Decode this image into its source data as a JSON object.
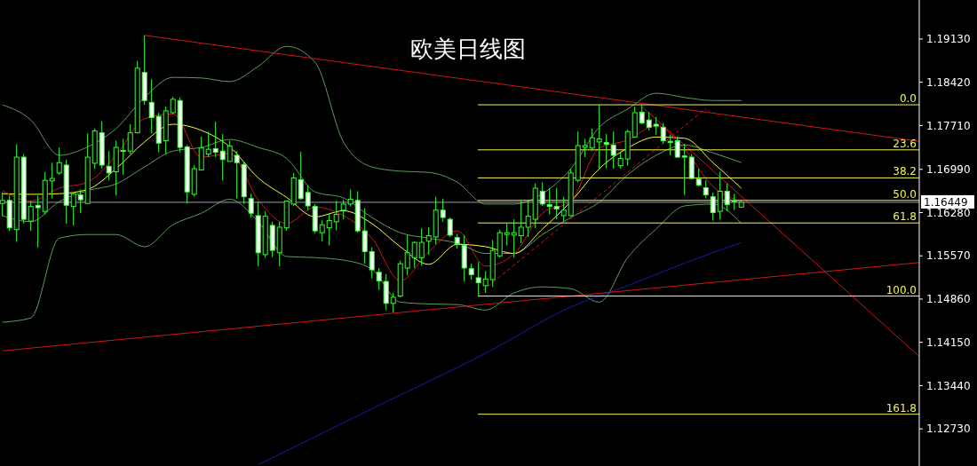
{
  "chart_data": {
    "type": "candlestick",
    "title": "欧美日线图",
    "categories": [
      null,
      null,
      null,
      null,
      null,
      null,
      null,
      null,
      null,
      null,
      null,
      null,
      null,
      null,
      null,
      null,
      null,
      null,
      null,
      null,
      null,
      null,
      null,
      null,
      null,
      null,
      null,
      null,
      null,
      null,
      null,
      null,
      null,
      null,
      null,
      null,
      null,
      null,
      null,
      null,
      null,
      null,
      null,
      null,
      null,
      null,
      null,
      null,
      null,
      null,
      null,
      null,
      null,
      null,
      null,
      null,
      null,
      null,
      null,
      null,
      null,
      null,
      null,
      null,
      null,
      null,
      null,
      null,
      null,
      null,
      null,
      null,
      null,
      null,
      null,
      null,
      null,
      null,
      null,
      null,
      null,
      null,
      null,
      null,
      null,
      null,
      null,
      null,
      null,
      null,
      null,
      null,
      null,
      null,
      null,
      null,
      null,
      null,
      null,
      null,
      null,
      null,
      null,
      null,
      null,
      null,
      null,
      null,
      null,
      null,
      null,
      null,
      null,
      null,
      null,
      null,
      null,
      null,
      null,
      null,
      null,
      null,
      null,
      null,
      null,
      null,
      null,
      null,
      null,
      null
    ],
    "ohlc": [
      [
        1.1643,
        1.1661,
        1.1622,
        1.1648
      ],
      [
        1.1648,
        1.1656,
        1.1598,
        1.1603
      ],
      [
        1.16,
        1.174,
        1.158,
        1.1719
      ],
      [
        1.1719,
        1.1724,
        1.161,
        1.1617
      ],
      [
        1.1614,
        1.1647,
        1.1598,
        1.1638
      ],
      [
        1.164,
        1.1656,
        1.1571,
        1.1636
      ],
      [
        1.163,
        1.1695,
        1.1625,
        1.1681
      ],
      [
        1.168,
        1.171,
        1.1651,
        1.1684
      ],
      [
        1.1693,
        1.1735,
        1.169,
        1.171
      ],
      [
        1.1706,
        1.1715,
        1.161,
        1.164
      ],
      [
        1.1638,
        1.1661,
        1.1607,
        1.1659
      ],
      [
        1.1657,
        1.1666,
        1.1627,
        1.1649
      ],
      [
        1.1643,
        1.1758,
        1.1643,
        1.1719
      ],
      [
        1.1709,
        1.1766,
        1.17,
        1.1762
      ],
      [
        1.1759,
        1.1778,
        1.17,
        1.1706
      ],
      [
        1.1704,
        1.1729,
        1.1681,
        1.1693
      ],
      [
        1.1695,
        1.1746,
        1.1656,
        1.1735
      ],
      [
        1.1729,
        1.1749,
        1.169,
        1.173
      ],
      [
        1.1729,
        1.1773,
        1.1724,
        1.1759
      ],
      [
        1.1759,
        1.1877,
        1.1758,
        1.1865
      ],
      [
        1.1858,
        1.1919,
        1.1805,
        1.1812
      ],
      [
        1.1809,
        1.1847,
        1.1758,
        1.1784
      ],
      [
        1.1786,
        1.1792,
        1.1727,
        1.1742
      ],
      [
        1.1746,
        1.1802,
        1.1724,
        1.1795
      ],
      [
        1.1792,
        1.1818,
        1.179,
        1.1814
      ],
      [
        1.1812,
        1.1817,
        1.1727,
        1.1735
      ],
      [
        1.1736,
        1.1739,
        1.1643,
        1.1662
      ],
      [
        1.1658,
        1.1706,
        1.1654,
        1.17
      ],
      [
        1.1698,
        1.1753,
        1.1697,
        1.1734
      ],
      [
        1.1724,
        1.1761,
        1.1719,
        1.1732
      ],
      [
        1.1733,
        1.1777,
        1.1719,
        1.1727
      ],
      [
        1.1729,
        1.1757,
        1.1681,
        1.1715
      ],
      [
        1.1712,
        1.1746,
        1.1712,
        1.1737
      ],
      [
        1.1722,
        1.1729,
        1.1651,
        1.171
      ],
      [
        1.1707,
        1.1712,
        1.1642,
        1.1654
      ],
      [
        1.1651,
        1.1659,
        1.162,
        1.1627
      ],
      [
        1.1623,
        1.1646,
        1.154,
        1.1562
      ],
      [
        1.1559,
        1.163,
        1.1554,
        1.1622
      ],
      [
        1.1607,
        1.1613,
        1.1555,
        1.1566
      ],
      [
        1.1562,
        1.1613,
        1.154,
        1.1604
      ],
      [
        1.1603,
        1.1647,
        1.1598,
        1.1647
      ],
      [
        1.1642,
        1.1693,
        1.1639,
        1.1685
      ],
      [
        1.1682,
        1.1728,
        1.1649,
        1.1651
      ],
      [
        1.1661,
        1.1673,
        1.1632,
        1.1639
      ],
      [
        1.1638,
        1.1642,
        1.1594,
        1.1598
      ],
      [
        1.1595,
        1.1615,
        1.1581,
        1.1608
      ],
      [
        1.1603,
        1.1627,
        1.1574,
        1.1615
      ],
      [
        1.1613,
        1.1647,
        1.1599,
        1.1625
      ],
      [
        1.1632,
        1.1649,
        1.1617,
        1.1642
      ],
      [
        1.1642,
        1.1666,
        1.1638,
        1.165
      ],
      [
        1.1648,
        1.1663,
        1.1595,
        1.1598
      ],
      [
        1.1598,
        1.1635,
        1.1544,
        1.1564
      ],
      [
        1.1564,
        1.1571,
        1.152,
        1.1534
      ],
      [
        1.153,
        1.1537,
        1.1501,
        1.1516
      ],
      [
        1.1515,
        1.1527,
        1.1468,
        1.1479
      ],
      [
        1.1479,
        1.1496,
        1.1464,
        1.1489
      ],
      [
        1.1491,
        1.1549,
        1.1489,
        1.1544
      ],
      [
        1.1537,
        1.1591,
        1.1525,
        1.1562
      ],
      [
        1.1554,
        1.1581,
        1.1537,
        1.1579
      ],
      [
        1.1554,
        1.1602,
        1.1541,
        1.1579
      ],
      [
        1.1581,
        1.1604,
        1.1559,
        1.159
      ],
      [
        1.1588,
        1.1654,
        1.1576,
        1.1632
      ],
      [
        1.1632,
        1.1651,
        1.1613,
        1.162
      ],
      [
        1.1617,
        1.162,
        1.1588,
        1.1591
      ],
      [
        1.1587,
        1.1593,
        1.1569,
        1.1577
      ],
      [
        1.1574,
        1.1591,
        1.1515,
        1.1537
      ],
      [
        1.1536,
        1.1544,
        1.1518,
        1.1526
      ],
      [
        1.1521,
        1.1547,
        1.1491,
        1.1513
      ],
      [
        1.1508,
        1.1532,
        1.1496,
        1.1519
      ],
      [
        1.1518,
        1.1583,
        1.1506,
        1.1566
      ],
      [
        1.1557,
        1.16,
        1.1554,
        1.1595
      ],
      [
        1.1592,
        1.161,
        1.1574,
        1.1595
      ],
      [
        1.1591,
        1.1617,
        1.1554,
        1.1595
      ],
      [
        1.159,
        1.1647,
        1.1578,
        1.1604
      ],
      [
        1.1604,
        1.1647,
        1.1588,
        1.1622
      ],
      [
        1.1617,
        1.1676,
        1.1603,
        1.1668
      ],
      [
        1.1663,
        1.1678,
        1.1639,
        1.1642
      ],
      [
        1.1641,
        1.1668,
        1.1625,
        1.1638
      ],
      [
        1.1638,
        1.1668,
        1.1617,
        1.1634
      ],
      [
        1.1623,
        1.1654,
        1.1613,
        1.1632
      ],
      [
        1.1623,
        1.17,
        1.1622,
        1.1693
      ],
      [
        1.1681,
        1.1761,
        1.1678,
        1.1738
      ],
      [
        1.1735,
        1.1749,
        1.1719,
        1.1738
      ],
      [
        1.1734,
        1.1766,
        1.1729,
        1.1751
      ],
      [
        1.1744,
        1.1805,
        1.17,
        1.1749
      ],
      [
        1.1743,
        1.1757,
        1.1701,
        1.174
      ],
      [
        1.1739,
        1.1761,
        1.17,
        1.1722
      ],
      [
        1.1705,
        1.1727,
        1.17,
        1.1717
      ],
      [
        1.1716,
        1.1764,
        1.1705,
        1.1761
      ],
      [
        1.1752,
        1.1802,
        1.1751,
        1.1792
      ],
      [
        1.1793,
        1.1805,
        1.1773,
        1.1775
      ],
      [
        1.178,
        1.1793,
        1.1763,
        1.1768
      ],
      [
        1.1773,
        1.1785,
        1.1756,
        1.177
      ],
      [
        1.1768,
        1.1775,
        1.1741,
        1.1746
      ],
      [
        1.1745,
        1.1756,
        1.1722,
        1.1743
      ],
      [
        1.1746,
        1.1753,
        1.1718,
        1.1719
      ],
      [
        1.1721,
        1.1741,
        1.1657,
        1.1719
      ],
      [
        1.1719,
        1.1724,
        1.1683,
        1.1684
      ],
      [
        1.1683,
        1.17,
        1.1671,
        1.1673
      ],
      [
        1.1669,
        1.1681,
        1.1652,
        1.1657
      ],
      [
        1.1654,
        1.1661,
        1.1615,
        1.1628
      ],
      [
        1.163,
        1.1695,
        1.1617,
        1.1663
      ],
      [
        1.1663,
        1.1676,
        1.163,
        1.1641
      ],
      [
        1.1647,
        1.1659,
        1.1632,
        1.1646
      ],
      [
        1.1637,
        1.1647,
        1.1636,
        1.16449
      ],
      null,
      null,
      null,
      null,
      null,
      null,
      null,
      null,
      null,
      null,
      null,
      null,
      null,
      null,
      null,
      null,
      null,
      null,
      null,
      null,
      null,
      null,
      null,
      null,
      null
    ],
    "series": [
      {
        "type": "line",
        "color": "#5a9e5a",
        "values": [
          1.1805,
          null,
          null,
          null,
          1.178,
          null,
          null,
          null,
          1.1722,
          null,
          null,
          null,
          1.1736,
          null,
          null,
          null,
          1.1766,
          null,
          null,
          null,
          1.1817,
          null,
          null,
          null,
          1.185,
          null,
          null,
          null,
          1.1849,
          null,
          null,
          null,
          1.1843,
          null,
          null,
          null,
          1.1868,
          null,
          null,
          null,
          1.1901,
          null,
          null,
          null,
          1.1875,
          null,
          null,
          null,
          1.1744,
          null,
          null,
          null,
          1.1703,
          null,
          null,
          null,
          1.1696,
          null,
          null,
          null,
          1.1694,
          null,
          null,
          null,
          1.1678,
          null,
          null,
          null,
          1.1642,
          null,
          null,
          null,
          1.1642,
          null,
          null,
          null,
          1.1659,
          null,
          null,
          null,
          1.17,
          null,
          null,
          null,
          1.1768,
          null,
          null,
          null,
          1.1798,
          null,
          null,
          null,
          1.1824,
          null,
          null,
          null,
          1.1817,
          null,
          null,
          null,
          1.1812,
          null,
          null,
          null,
          1.1812,
          null,
          null,
          null,
          null,
          null,
          null,
          null,
          null,
          null,
          null,
          null,
          null,
          null,
          null,
          null,
          null,
          null,
          null,
          null,
          null,
          null,
          null,
          null,
          null,
          null
        ]
      },
      {
        "type": "line",
        "color": "#5a9e5a",
        "values": [
          1.1623,
          null,
          null,
          null,
          1.1613,
          null,
          null,
          null,
          1.1646,
          null,
          null,
          null,
          1.1664,
          null,
          null,
          null,
          1.1675,
          null,
          null,
          null,
          1.1703,
          null,
          null,
          null,
          1.1729,
          null,
          null,
          null,
          1.1735,
          null,
          null,
          null,
          1.1748,
          null,
          null,
          null,
          1.1735,
          null,
          null,
          null,
          1.1717,
          null,
          null,
          null,
          1.1662,
          null,
          null,
          null,
          1.1652,
          null,
          null,
          null,
          1.162,
          null,
          null,
          null,
          1.1595,
          null,
          null,
          null,
          1.1586,
          null,
          null,
          null,
          1.1578,
          null,
          null,
          null,
          1.1561,
          null,
          null,
          null,
          1.1561,
          null,
          null,
          null,
          1.1592,
          null,
          null,
          null,
          1.162,
          null,
          null,
          null,
          1.1645,
          null,
          null,
          null,
          1.169,
          null,
          null,
          null,
          1.1722,
          null,
          null,
          null,
          1.1739,
          null,
          null,
          null,
          1.1726,
          null,
          null,
          null,
          1.171,
          null,
          null,
          null,
          null,
          null,
          null,
          null,
          null,
          null,
          null,
          null,
          null,
          null,
          null,
          null,
          null,
          null,
          null,
          null,
          null,
          null,
          null,
          null,
          null,
          null
        ]
      },
      {
        "type": "line",
        "color": "#5a9e5a",
        "values": [
          1.1448,
          null,
          null,
          null,
          1.1455,
          null,
          null,
          null,
          1.1586,
          null,
          null,
          null,
          1.1592,
          null,
          null,
          null,
          1.1592,
          null,
          null,
          null,
          1.1572,
          null,
          null,
          null,
          1.1608,
          null,
          null,
          null,
          1.1627,
          null,
          null,
          null,
          1.165,
          null,
          null,
          null,
          1.1613,
          null,
          null,
          null,
          1.1556,
          null,
          null,
          null,
          1.1554,
          null,
          null,
          null,
          1.155,
          null,
          null,
          null,
          1.1535,
          null,
          null,
          null,
          1.1481,
          null,
          null,
          null,
          1.1478,
          null,
          null,
          null,
          1.1477,
          null,
          null,
          null,
          1.1468,
          null,
          null,
          null,
          1.1496,
          null,
          null,
          null,
          1.1506,
          null,
          null,
          null,
          1.1503,
          null,
          null,
          null,
          1.1481,
          null,
          null,
          null,
          1.1554,
          null,
          null,
          null,
          1.1601,
          null,
          null,
          null,
          1.1639,
          null,
          null,
          null,
          1.1642,
          null,
          null,
          null,
          1.161,
          null,
          null,
          null,
          null,
          null,
          null,
          null,
          null,
          null,
          null,
          null,
          null,
          null,
          null,
          null,
          null,
          null,
          null,
          null,
          null,
          null,
          null,
          null,
          null,
          null
        ]
      },
      {
        "type": "line",
        "color": "#ffff33",
        "values": [
          1.1659,
          null,
          null,
          null,
          1.1658,
          null,
          null,
          null,
          1.1659,
          null,
          null,
          null,
          1.1666,
          null,
          null,
          null,
          1.17,
          null,
          null,
          null,
          1.1744,
          null,
          null,
          null,
          1.1773,
          null,
          null,
          null,
          1.1763,
          null,
          null,
          null,
          1.1736,
          null,
          null,
          null,
          1.1685,
          null,
          null,
          null,
          1.1653,
          null,
          null,
          null,
          1.1621,
          null,
          null,
          null,
          1.1631,
          null,
          null,
          null,
          1.161,
          null,
          null,
          null,
          1.1572,
          null,
          null,
          null,
          1.1543,
          null,
          null,
          null,
          1.1576,
          null,
          null,
          null,
          1.1572,
          null,
          null,
          null,
          1.1561,
          null,
          null,
          null,
          1.1601,
          null,
          null,
          null,
          1.1646,
          null,
          null,
          null,
          1.17,
          null,
          null,
          null,
          1.1734,
          null,
          null,
          null,
          1.1752,
          null,
          null,
          null,
          1.175,
          null,
          null,
          null,
          1.171,
          null,
          null,
          null,
          1.1668,
          null,
          null,
          null,
          null,
          null,
          null,
          null,
          null,
          null,
          null,
          null,
          null,
          null,
          null,
          null,
          null,
          null,
          null,
          null,
          null,
          null,
          null,
          null,
          null,
          null
        ]
      },
      {
        "type": "line",
        "color": "#d01818",
        "values": [
          1.1664,
          null,
          null,
          null,
          1.1647,
          null,
          null,
          null,
          1.1668,
          null,
          null,
          null,
          1.1678,
          null,
          null,
          null,
          1.1722,
          null,
          null,
          null,
          1.1782,
          null,
          null,
          null,
          1.179,
          null,
          null,
          null,
          1.1719,
          null,
          null,
          null,
          1.1725,
          null,
          null,
          null,
          1.1649,
          null,
          null,
          null,
          1.161,
          null,
          null,
          null,
          1.1637,
          null,
          null,
          null,
          1.1623,
          null,
          null,
          null,
          1.1586,
          null,
          null,
          null,
          1.1516,
          null,
          null,
          null,
          1.1564,
          null,
          null,
          null,
          1.1598,
          null,
          null,
          null,
          1.154,
          null,
          null,
          null,
          1.156,
          null,
          null,
          null,
          1.1627,
          null,
          null,
          null,
          1.1647,
          null,
          null,
          null,
          1.1734,
          null,
          null,
          null,
          1.1747,
          null,
          null,
          null,
          1.1771,
          null,
          null,
          null,
          1.1732,
          null,
          null,
          null,
          1.1671,
          null,
          null,
          null,
          1.1646,
          null,
          null,
          null,
          null,
          null,
          null,
          null,
          null,
          null,
          null,
          null,
          null,
          null,
          null,
          null,
          null,
          null,
          null,
          null,
          null,
          null,
          null,
          null,
          null,
          null
        ]
      },
      {
        "type": "line",
        "color": "#1a1aa8",
        "values": [
          null,
          null,
          null,
          null,
          null,
          null,
          null,
          null,
          null,
          null,
          null,
          null,
          null,
          null,
          null,
          null,
          null,
          null,
          null,
          null,
          null,
          null,
          null,
          null,
          null,
          null,
          null,
          null,
          null,
          null,
          null,
          null,
          null,
          null,
          null,
          null,
          1.1214,
          null,
          null,
          null,
          null,
          null,
          null,
          null,
          null,
          null,
          null,
          null,
          null,
          null,
          null,
          null,
          1.1306,
          null,
          null,
          null,
          null,
          null,
          null,
          null,
          null,
          null,
          null,
          null,
          null,
          null,
          null,
          null,
          1.1397,
          null,
          null,
          null,
          null,
          null,
          null,
          null,
          null,
          null,
          null,
          null,
          1.1473,
          null,
          null,
          null,
          null,
          null,
          null,
          null,
          1.1508,
          null,
          null,
          null,
          null,
          null,
          null,
          null,
          1.1545,
          null,
          null,
          null,
          null,
          null,
          null,
          null,
          1.1579,
          null,
          null,
          null,
          null,
          null,
          null,
          null,
          null,
          null,
          null,
          null,
          null,
          null,
          null,
          null,
          null,
          null,
          null,
          null,
          null,
          null,
          null,
          null,
          null,
          null
        ]
      },
      {
        "type": "line",
        "color": "#d01818",
        "values": [
          null,
          null,
          null,
          null,
          null,
          null,
          null,
          null,
          null,
          null,
          null,
          null,
          null,
          null,
          null,
          null,
          null,
          null,
          null,
          null,
          1.1919,
          null,
          null,
          null,
          null,
          null,
          null,
          null,
          null,
          null,
          null,
          null,
          null,
          null,
          null,
          null,
          null,
          null,
          null,
          null,
          null,
          null,
          null,
          null,
          null,
          null,
          null,
          null,
          null,
          null,
          null,
          null,
          null,
          null,
          null,
          null,
          null,
          null,
          null,
          null,
          null,
          null,
          null,
          null,
          null,
          null,
          null,
          null,
          null,
          null,
          null,
          null,
          null,
          null,
          null,
          null,
          null,
          null,
          null,
          null,
          null,
          null,
          null,
          null,
          null,
          null,
          null,
          null,
          null,
          null,
          null,
          null,
          null,
          null,
          null,
          null,
          null,
          null,
          null,
          null,
          null,
          null,
          null,
          null,
          null,
          null,
          null,
          null,
          null,
          null,
          null,
          null,
          null,
          null,
          null,
          null,
          null,
          null,
          null,
          null,
          null,
          null,
          null,
          null,
          null,
          null,
          null,
          null,
          null,
          1.1745
        ]
      },
      {
        "type": "line",
        "color": "#d01818",
        "values": [
          1.1401,
          null,
          null,
          null,
          null,
          null,
          null,
          null,
          null,
          null,
          null,
          null,
          null,
          null,
          null,
          null,
          null,
          null,
          null,
          null,
          null,
          null,
          null,
          null,
          null,
          null,
          null,
          null,
          null,
          null,
          null,
          null,
          null,
          null,
          null,
          null,
          null,
          null,
          null,
          null,
          null,
          null,
          null,
          null,
          null,
          null,
          null,
          null,
          null,
          null,
          null,
          null,
          null,
          null,
          null,
          null,
          null,
          null,
          null,
          null,
          null,
          null,
          null,
          null,
          null,
          null,
          null,
          null,
          null,
          null,
          null,
          null,
          null,
          null,
          null,
          null,
          null,
          null,
          null,
          null,
          null,
          null,
          null,
          null,
          null,
          null,
          null,
          null,
          null,
          null,
          null,
          null,
          null,
          null,
          null,
          null,
          null,
          null,
          null,
          null,
          null,
          null,
          null,
          null,
          null,
          null,
          null,
          null,
          null,
          null,
          null,
          null,
          null,
          null,
          null,
          null,
          null,
          null,
          null,
          null,
          null,
          null,
          null,
          null,
          null,
          null,
          null,
          null,
          null,
          1.1546
        ]
      },
      {
        "type": "line",
        "color": "#d01818",
        "values": [
          null,
          null,
          null,
          null,
          null,
          null,
          null,
          null,
          null,
          null,
          null,
          null,
          null,
          null,
          null,
          null,
          null,
          null,
          null,
          null,
          null,
          null,
          null,
          null,
          null,
          null,
          null,
          null,
          null,
          null,
          null,
          null,
          null,
          null,
          null,
          null,
          null,
          null,
          null,
          null,
          null,
          null,
          null,
          null,
          null,
          null,
          null,
          null,
          null,
          null,
          null,
          null,
          null,
          null,
          null,
          null,
          null,
          null,
          null,
          null,
          null,
          null,
          null,
          null,
          null,
          null,
          null,
          null,
          null,
          null,
          null,
          null,
          null,
          null,
          null,
          null,
          null,
          null,
          null,
          null,
          null,
          null,
          null,
          null,
          null,
          null,
          null,
          null,
          null,
          null,
          1.1802,
          null,
          null,
          null,
          null,
          null,
          null,
          null,
          null,
          null,
          null,
          null,
          null,
          null,
          null,
          null,
          null,
          null,
          null,
          null,
          null,
          null,
          null,
          null,
          null,
          null,
          null,
          null,
          null,
          null,
          null,
          null,
          null,
          null,
          null,
          null,
          null,
          null,
          null,
          1.1392
        ]
      },
      {
        "type": "line",
        "color": "#d01818",
        "line_style": "dashed",
        "values": [
          null,
          null,
          null,
          null,
          null,
          null,
          null,
          null,
          null,
          null,
          null,
          null,
          null,
          null,
          null,
          null,
          null,
          null,
          null,
          null,
          null,
          null,
          null,
          null,
          null,
          null,
          null,
          null,
          null,
          null,
          null,
          null,
          null,
          null,
          null,
          null,
          null,
          null,
          null,
          null,
          null,
          null,
          null,
          null,
          null,
          null,
          null,
          null,
          null,
          null,
          null,
          null,
          null,
          null,
          null,
          null,
          null,
          null,
          null,
          null,
          null,
          null,
          null,
          null,
          null,
          null,
          null,
          1.1494,
          null,
          null,
          null,
          null,
          null,
          null,
          null,
          null,
          null,
          null,
          null,
          null,
          null,
          null,
          null,
          null,
          null,
          null,
          null,
          null,
          null,
          null,
          null,
          null,
          null,
          null,
          null,
          null,
          null,
          null,
          null,
          1.1799,
          null,
          null,
          null,
          null,
          null,
          null,
          null,
          null,
          null,
          null,
          null,
          null,
          null,
          null,
          null,
          null,
          null,
          null,
          null,
          null,
          null,
          null,
          null,
          null,
          null,
          null,
          null,
          null,
          null,
          null
        ]
      }
    ],
    "ylim": [
      1.1212,
      1.1977
    ],
    "yticks": [
      {
        "value": 1.1913,
        "label": "1.19130"
      },
      {
        "value": 1.1842,
        "label": "1.18420"
      },
      {
        "value": 1.1771,
        "label": "1.17710"
      },
      {
        "value": 1.1699,
        "label": "1.16990"
      },
      {
        "value": 1.1628,
        "label": "1.16280"
      },
      {
        "value": 1.1557,
        "label": "1.15570"
      },
      {
        "value": 1.1486,
        "label": "1.14860"
      },
      {
        "value": 1.1415,
        "label": "1.14150"
      },
      {
        "value": 1.1344,
        "label": "1.13440"
      },
      {
        "value": 1.1273,
        "label": "1.12730"
      }
    ],
    "ref_lines": [
      {
        "axis": "y",
        "value": 1.1805,
        "color": "#f2f25a"
      },
      {
        "axis": "y",
        "value": 1.1731,
        "color": "#f2f25a"
      },
      {
        "axis": "y",
        "value": 1.1685,
        "color": "#f2f25a"
      },
      {
        "axis": "y",
        "value": 1.1648,
        "color": "#f2f25a"
      },
      {
        "axis": "y",
        "value": 1.1611,
        "color": "#f2f25a"
      },
      {
        "axis": "y",
        "value": 1.1491,
        "color": "#f2f25a"
      },
      {
        "axis": "y",
        "value": 1.1297,
        "color": "#f2f25a"
      },
      {
        "axis": "y",
        "value": 1.16449,
        "label": "1.16449",
        "color": "#9a9aaa"
      }
    ],
    "annotations": [
      {
        "text": "0.0",
        "y": 1.1805
      },
      {
        "text": "23.6",
        "y": 1.1731
      },
      {
        "text": "38.2",
        "y": 1.1685
      },
      {
        "text": "50.0",
        "y": 1.1648
      },
      {
        "text": "61.8",
        "y": 1.1611
      },
      {
        "text": "100.0",
        "y": 1.1491
      },
      {
        "text": "161.8",
        "y": 1.1297
      }
    ],
    "grid": false
  }
}
